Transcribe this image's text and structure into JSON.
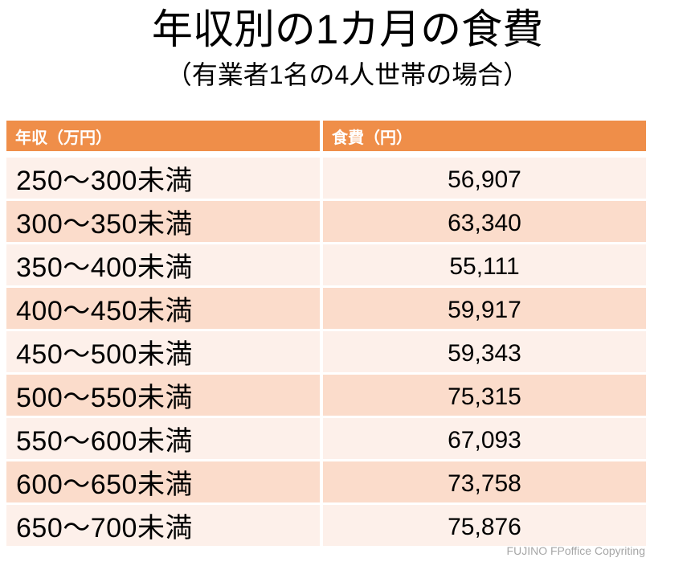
{
  "slide": {
    "title": "年収別の1カ月の食費",
    "subtitle": "（有業者1名の4人世帯の場合）",
    "footer_credit": "FUJINO FPoffice Copyriting"
  },
  "table": {
    "headers": [
      "年収（万円）",
      "食費（円）"
    ],
    "rows": [
      {
        "label": "250～300未満",
        "value": "56,907"
      },
      {
        "label": "300～350未満",
        "value": "63,340"
      },
      {
        "label": "350～400未満",
        "value": "55,111"
      },
      {
        "label": "400～450未満",
        "value": "59,917"
      },
      {
        "label": "450～500未満",
        "value": "59,343"
      },
      {
        "label": "500～550未満",
        "value": "75,315"
      },
      {
        "label": "550～600未満",
        "value": "67,093"
      },
      {
        "label": "600～650未満",
        "value": "73,758"
      },
      {
        "label": "650～700未満",
        "value": "75,876"
      }
    ]
  },
  "colors": {
    "header_bg": "#EF8E49",
    "header_text": "#FFFFFF",
    "row_band_dark": "#FBDCCB",
    "row_band_light": "#FDF0EA",
    "body_text": "#000000",
    "footer_text": "#A6A6A6",
    "page_bg": "#FFFFFF"
  },
  "chart_data": {
    "type": "table",
    "title": "年収別の1カ月の食費",
    "subtitle": "（有業者1名の4人世帯の場合）",
    "columns": [
      "年収（万円）",
      "食費（円）"
    ],
    "categories": [
      "250～300未満",
      "300～350未満",
      "350～400未満",
      "400～450未満",
      "450～500未満",
      "500～550未満",
      "550～600未満",
      "600～650未満",
      "650～700未満"
    ],
    "values": [
      56907,
      63340,
      55111,
      59917,
      59343,
      75315,
      67093,
      73758,
      75876
    ]
  }
}
